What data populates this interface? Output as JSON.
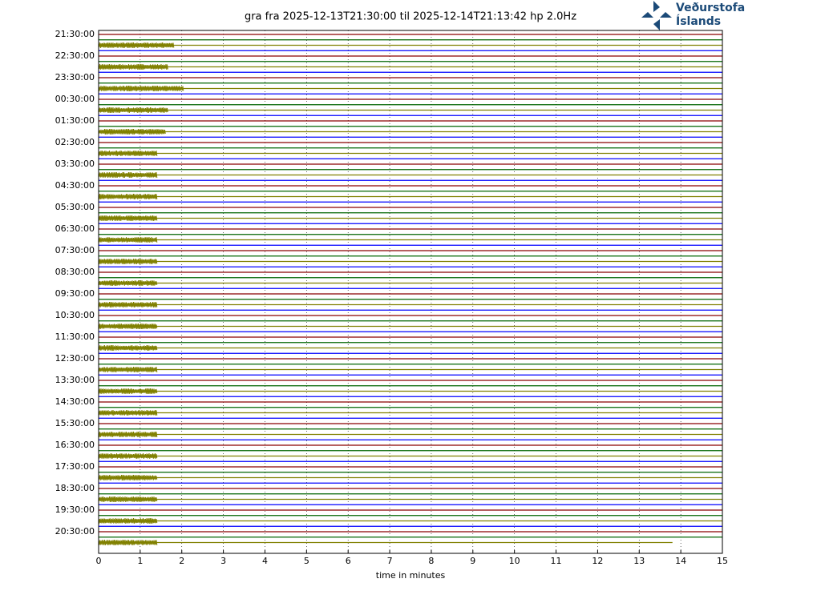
{
  "chart_data": {
    "type": "helicorder",
    "title": "gra fra 2025-12-13T21:30:00 til 2025-12-14T21:13:42 hp 2.0Hz",
    "x_label": "time in minutes",
    "xlim": [
      0,
      15
    ],
    "xticks": [
      0,
      1,
      2,
      3,
      4,
      5,
      6,
      7,
      8,
      9,
      10,
      11,
      12,
      13,
      14,
      15
    ],
    "grid": true,
    "row_labels": [
      "21:30:00",
      "22:30:00",
      "23:30:00",
      "00:30:00",
      "01:30:00",
      "02:30:00",
      "03:30:00",
      "04:30:00",
      "05:30:00",
      "06:30:00",
      "07:30:00",
      "08:30:00",
      "09:30:00",
      "10:30:00",
      "11:30:00",
      "12:30:00",
      "13:30:00",
      "14:30:00",
      "15:30:00",
      "16:30:00",
      "17:30:00",
      "18:30:00",
      "19:30:00",
      "20:30:00"
    ],
    "trace_colors": [
      "#8b0000",
      "#006400",
      "#808000",
      "#0000ff"
    ],
    "burst_end_minutes": [
      1.8,
      1.65,
      2.05,
      1.65,
      1.6,
      1.4,
      1.4,
      1.4,
      1.4,
      1.4,
      1.4,
      1.4,
      1.4,
      1.4,
      1.4,
      1.4,
      1.4,
      1.4,
      1.4,
      1.4,
      1.4,
      1.4,
      1.4,
      1.4
    ],
    "trace_end_minutes": 13.8,
    "logo": [
      "Veðurstofa",
      "Íslands"
    ]
  }
}
